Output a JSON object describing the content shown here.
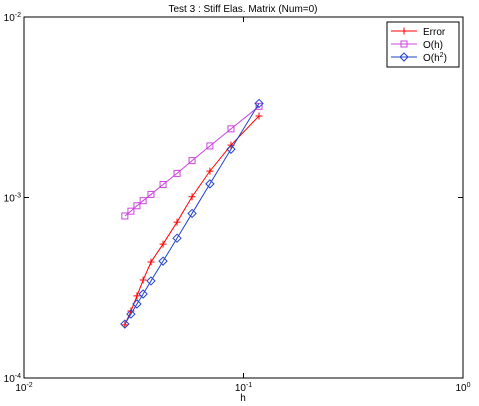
{
  "chart_data": {
    "type": "line",
    "title": "Test 3 : Stiff Elas. Matrix (Num=0)",
    "x_label": "h",
    "x_scale": "log",
    "y_scale": "log",
    "xlim": [
      0.01,
      1
    ],
    "ylim": [
      0.0001,
      0.01
    ],
    "xticks": [
      {
        "value": 0.01,
        "label": "10^-2"
      },
      {
        "value": 0.1,
        "label": "10^-1"
      },
      {
        "value": 1,
        "label": "10^0"
      }
    ],
    "yticks": [
      {
        "value": 0.0001,
        "label": "10^-4"
      },
      {
        "value": 0.001,
        "label": "10^-3"
      },
      {
        "value": 0.01,
        "label": "10^-2"
      }
    ],
    "legend": "top-right",
    "x": [
      0.0288,
      0.0307,
      0.0327,
      0.0349,
      0.0379,
      0.043,
      0.0498,
      0.0583,
      0.0703,
      0.0877,
      0.1177
    ],
    "series": [
      {
        "name": "Error",
        "color": "#ff0000",
        "marker": "plus",
        "values": [
          0.000197,
          0.000235,
          0.000285,
          0.000349,
          0.000439,
          0.000552,
          0.000731,
          0.00101,
          0.0014,
          0.00195,
          0.00283
        ]
      },
      {
        "name": "O(h)",
        "color": "#cc44dd",
        "marker": "square",
        "values": [
          0.00079,
          0.00084,
          0.0009,
          0.00096,
          0.00104,
          0.00118,
          0.00136,
          0.0016,
          0.00193,
          0.0024,
          0.0032
        ]
      },
      {
        "name": "O(h^2)",
        "color": "#2244cc",
        "marker": "diamond",
        "values": [
          0.000199,
          0.000226,
          0.000257,
          0.000292,
          0.000345,
          0.000444,
          0.000595,
          0.000816,
          0.00119,
          0.00185,
          0.00332
        ]
      }
    ]
  }
}
